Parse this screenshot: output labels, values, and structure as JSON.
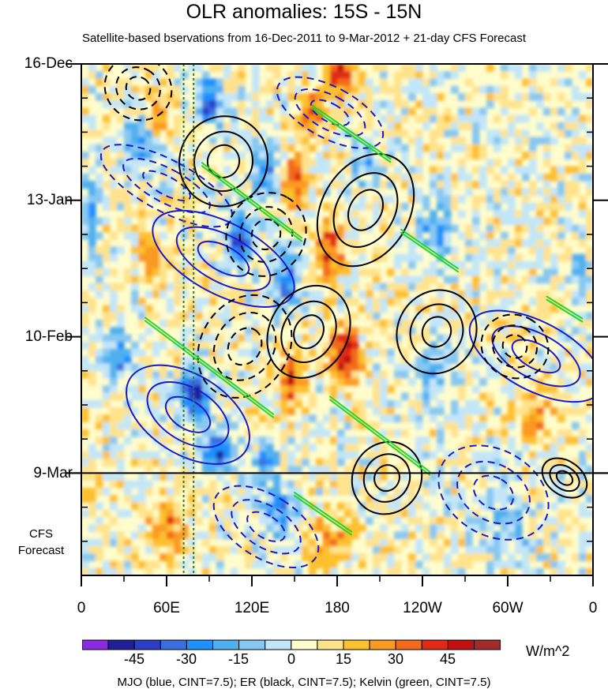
{
  "chart_data": {
    "type": "heatmap",
    "title": "OLR anomalies: 15S - 15N",
    "subtitle": "Satellite-based bservations from 16-Dec-2011 to 9-Mar-2012 + 21-day CFS Forecast",
    "y_tick_labels": [
      "16-Dec",
      "13-Jan",
      "10-Feb",
      "9-Mar"
    ],
    "x_tick_labels": [
      "0",
      "60E",
      "120E",
      "180",
      "120W",
      "60W",
      "0"
    ],
    "x_ticks_deg": [
      0,
      60,
      120,
      180,
      240,
      300,
      360
    ],
    "x_range_deg": [
      0,
      360
    ],
    "y_range_days": [
      0,
      105
    ],
    "y_ticks_days": [
      0,
      28,
      56,
      84
    ],
    "observation_end_day": 84,
    "forecast_label": [
      "CFS",
      "Forecast"
    ],
    "reference_lines_deg": [
      72,
      79
    ],
    "colorbar": {
      "levels": [
        -60,
        -52.5,
        -45,
        -37.5,
        -30,
        -22.5,
        -15,
        -7.5,
        0,
        7.5,
        15,
        22.5,
        30,
        37.5,
        45,
        52.5,
        60
      ],
      "colors": [
        "#8a2be2",
        "#1f1f9a",
        "#2a3ec8",
        "#3b6fe0",
        "#1e90ff",
        "#4fb0f0",
        "#86c8f2",
        "#c2e6f8",
        "#fffccd",
        "#ffe38c",
        "#fdc02f",
        "#fb9a22",
        "#f36a1b",
        "#e02a15",
        "#c01010",
        "#a52a2a",
        "#ff69b4"
      ],
      "tick_labels": [
        "-45",
        "-30",
        "-15",
        "0",
        "15",
        "30",
        "45"
      ],
      "tick_values": [
        -45,
        -30,
        -15,
        0,
        15,
        30,
        45
      ],
      "units": "W/m^2"
    },
    "overlays": "MJO (blue, CINT=7.5); ER (black, CINT=7.5); Kelvin (green, CINT=7.5)",
    "overlay_colors": {
      "MJO": "#1a1ac8",
      "ER": "#000000",
      "Kelvin": "#27d427",
      "reference": "#1a8a1a"
    },
    "anomaly_features": [
      {
        "lon": 182,
        "day": 2,
        "value": 40,
        "sx": 10,
        "sy": 4
      },
      {
        "lon": 162,
        "day": 10,
        "value": 32,
        "sx": 9,
        "sy": 4
      },
      {
        "lon": 55,
        "day": 10,
        "value": 22,
        "sx": 8,
        "sy": 4
      },
      {
        "lon": 90,
        "day": 8,
        "value": -38,
        "sx": 8,
        "sy": 5
      },
      {
        "lon": 40,
        "day": 16,
        "value": -28,
        "sx": 9,
        "sy": 5
      },
      {
        "lon": 200,
        "day": 20,
        "value": -20,
        "sx": 10,
        "sy": 5
      },
      {
        "lon": 150,
        "day": 24,
        "value": 38,
        "sx": 9,
        "sy": 5
      },
      {
        "lon": 130,
        "day": 22,
        "value": -30,
        "sx": 9,
        "sy": 5
      },
      {
        "lon": 112,
        "day": 36,
        "value": -42,
        "sx": 9,
        "sy": 6
      },
      {
        "lon": 175,
        "day": 38,
        "value": 34,
        "sx": 9,
        "sy": 6
      },
      {
        "lon": 50,
        "day": 40,
        "value": 25,
        "sx": 10,
        "sy": 5
      },
      {
        "lon": 145,
        "day": 44,
        "value": -34,
        "sx": 9,
        "sy": 6
      },
      {
        "lon": 250,
        "day": 34,
        "value": -22,
        "sx": 12,
        "sy": 6
      },
      {
        "lon": 185,
        "day": 60,
        "value": 46,
        "sx": 11,
        "sy": 5
      },
      {
        "lon": 148,
        "day": 65,
        "value": 34,
        "sx": 8,
        "sy": 6
      },
      {
        "lon": 25,
        "day": 60,
        "value": -30,
        "sx": 10,
        "sy": 5
      },
      {
        "lon": 80,
        "day": 68,
        "value": -50,
        "sx": 10,
        "sy": 5
      },
      {
        "lon": 95,
        "day": 80,
        "value": -45,
        "sx": 10,
        "sy": 4
      },
      {
        "lon": 130,
        "day": 82,
        "value": -30,
        "sx": 8,
        "sy": 4
      },
      {
        "lon": 250,
        "day": 64,
        "value": -20,
        "sx": 12,
        "sy": 7
      },
      {
        "lon": 320,
        "day": 72,
        "value": 18,
        "sx": 14,
        "sy": 6
      },
      {
        "lon": 60,
        "day": 95,
        "value": 24,
        "sx": 14,
        "sy": 6
      },
      {
        "lon": 140,
        "day": 92,
        "value": -28,
        "sx": 12,
        "sy": 5
      },
      {
        "lon": 175,
        "day": 98,
        "value": 22,
        "sx": 14,
        "sy": 5
      },
      {
        "lon": 300,
        "day": 95,
        "value": -18,
        "sx": 14,
        "sy": 6
      },
      {
        "lon": 5,
        "day": 30,
        "value": -18,
        "sx": 8,
        "sy": 8
      },
      {
        "lon": 350,
        "day": 45,
        "value": -16,
        "sx": 8,
        "sy": 8
      }
    ],
    "mjo_contours": [
      {
        "lon": 60,
        "day": 25,
        "rx": 18,
        "ry": 15,
        "rot": -62,
        "dashed": true
      },
      {
        "lon": 100,
        "day": 40,
        "rx": 25,
        "ry": 16,
        "rot": -62,
        "dashed": false
      },
      {
        "lon": 175,
        "day": 10,
        "rx": 18,
        "ry": 12,
        "rot": -62,
        "dashed": true
      },
      {
        "lon": 75,
        "day": 72,
        "rx": 28,
        "ry": 14,
        "rot": -58,
        "dashed": false
      },
      {
        "lon": 130,
        "day": 95,
        "rx": 22,
        "ry": 12,
        "rot": -58,
        "dashed": true
      },
      {
        "lon": 320,
        "day": 60,
        "rx": 24,
        "ry": 15,
        "rot": -62,
        "dashed": false
      },
      {
        "lon": 290,
        "day": 88,
        "rx": 30,
        "ry": 12,
        "rot": -60,
        "dashed": true
      }
    ],
    "er_contours": [
      {
        "lon": 100,
        "day": 20,
        "rx": 32,
        "ry": 9,
        "rot": -62,
        "dashed": false
      },
      {
        "lon": 130,
        "day": 35,
        "rx": 30,
        "ry": 8,
        "rot": -60,
        "dashed": true
      },
      {
        "lon": 200,
        "day": 30,
        "rx": 42,
        "ry": 9,
        "rot": -60,
        "dashed": false
      },
      {
        "lon": 115,
        "day": 58,
        "rx": 38,
        "ry": 9,
        "rot": -58,
        "dashed": true
      },
      {
        "lon": 160,
        "day": 55,
        "rx": 34,
        "ry": 8,
        "rot": -60,
        "dashed": false
      },
      {
        "lon": 250,
        "day": 55,
        "rx": 30,
        "ry": 8,
        "rot": -60,
        "dashed": false
      },
      {
        "lon": 305,
        "day": 58,
        "rx": 22,
        "ry": 7,
        "rot": -62,
        "dashed": true
      },
      {
        "lon": 215,
        "day": 85,
        "rx": 26,
        "ry": 7,
        "rot": -58,
        "dashed": false
      },
      {
        "lon": 40,
        "day": 5,
        "rx": 22,
        "ry": 7,
        "rot": -60,
        "dashed": true
      },
      {
        "lon": 340,
        "day": 85,
        "rx": 12,
        "ry": 5,
        "rot": -55,
        "dashed": false
      }
    ],
    "kelvin_contours": [
      {
        "lon": 190,
        "day": 14,
        "len": 55,
        "slope": 0.2
      },
      {
        "lon": 120,
        "day": 28,
        "len": 70,
        "slope": 0.22
      },
      {
        "lon": 245,
        "day": 38,
        "len": 40,
        "slope": 0.2
      },
      {
        "lon": 90,
        "day": 62,
        "len": 90,
        "slope": 0.22
      },
      {
        "lon": 210,
        "day": 76,
        "len": 70,
        "slope": 0.22
      },
      {
        "lon": 170,
        "day": 92,
        "len": 40,
        "slope": 0.2
      },
      {
        "lon": 340,
        "day": 50,
        "len": 25,
        "slope": 0.18
      }
    ]
  },
  "labels": {
    "colorbar_units": "W/m^2",
    "footer": "MJO (blue, CINT=7.5); ER (black, CINT=7.5); Kelvin (green, CINT=7.5)"
  }
}
